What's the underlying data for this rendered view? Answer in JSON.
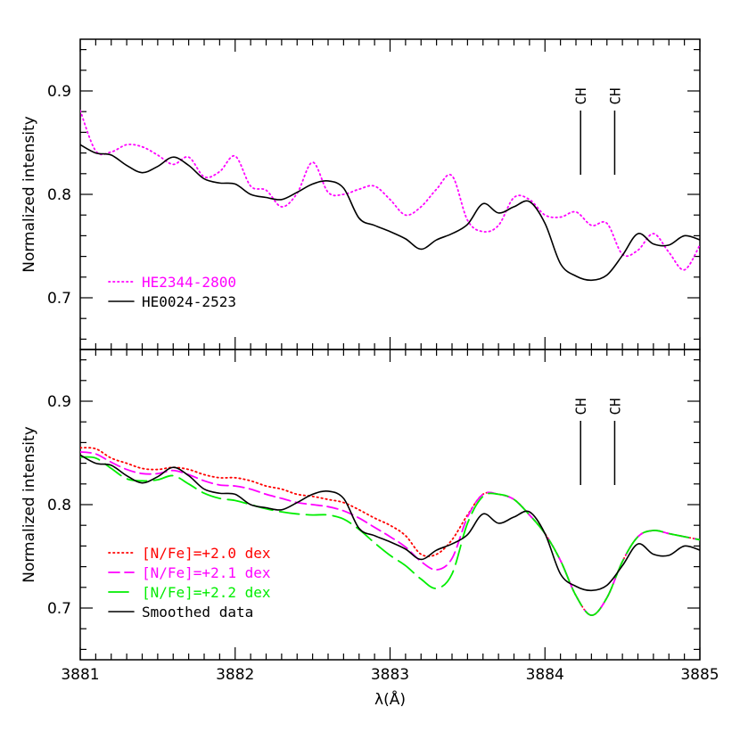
{
  "chart_data": [
    {
      "type": "line",
      "ylabel": "Normalized intensity",
      "xlim": [
        3881,
        3885
      ],
      "ylim": [
        0.65,
        0.95
      ],
      "yticks": [
        0.7,
        0.8,
        0.9
      ],
      "annotations": [
        {
          "text": "CH",
          "x": 3884.23
        },
        {
          "text": "CH",
          "x": 3884.45
        }
      ],
      "legend_position": "bottom-left",
      "series": [
        {
          "name": "HE2344-2800",
          "color": "#ff00ff",
          "style": "dotted",
          "x": [
            3881.0,
            3881.1,
            3881.2,
            3881.3,
            3881.4,
            3881.5,
            3881.6,
            3881.7,
            3881.8,
            3881.9,
            3882.0,
            3882.1,
            3882.2,
            3882.3,
            3882.4,
            3882.5,
            3882.6,
            3882.7,
            3882.8,
            3882.9,
            3883.0,
            3883.1,
            3883.2,
            3883.3,
            3883.4,
            3883.5,
            3883.6,
            3883.7,
            3883.8,
            3883.9,
            3884.0,
            3884.1,
            3884.2,
            3884.3,
            3884.4,
            3884.5,
            3884.6,
            3884.7,
            3884.8,
            3884.9,
            3885.0
          ],
          "y": [
            0.881,
            0.842,
            0.841,
            0.848,
            0.846,
            0.838,
            0.829,
            0.836,
            0.817,
            0.822,
            0.837,
            0.808,
            0.804,
            0.788,
            0.801,
            0.831,
            0.802,
            0.8,
            0.805,
            0.808,
            0.795,
            0.78,
            0.788,
            0.805,
            0.818,
            0.775,
            0.764,
            0.77,
            0.797,
            0.795,
            0.78,
            0.778,
            0.783,
            0.77,
            0.772,
            0.742,
            0.746,
            0.762,
            0.744,
            0.727,
            0.751
          ]
        },
        {
          "name": "HE0024-2523",
          "color": "#000000",
          "style": "solid",
          "x": [
            3881.0,
            3881.1,
            3881.2,
            3881.3,
            3881.4,
            3881.5,
            3881.6,
            3881.7,
            3881.8,
            3881.9,
            3882.0,
            3882.1,
            3882.2,
            3882.3,
            3882.4,
            3882.5,
            3882.6,
            3882.7,
            3882.8,
            3882.9,
            3883.0,
            3883.1,
            3883.2,
            3883.3,
            3883.4,
            3883.5,
            3883.6,
            3883.7,
            3883.8,
            3883.9,
            3884.0,
            3884.1,
            3884.2,
            3884.3,
            3884.4,
            3884.5,
            3884.6,
            3884.7,
            3884.8,
            3884.9,
            3885.0
          ],
          "y": [
            0.848,
            0.84,
            0.838,
            0.828,
            0.821,
            0.827,
            0.836,
            0.828,
            0.815,
            0.811,
            0.81,
            0.8,
            0.797,
            0.795,
            0.802,
            0.81,
            0.813,
            0.806,
            0.777,
            0.77,
            0.764,
            0.757,
            0.747,
            0.756,
            0.762,
            0.771,
            0.791,
            0.782,
            0.788,
            0.793,
            0.772,
            0.733,
            0.721,
            0.717,
            0.722,
            0.741,
            0.762,
            0.752,
            0.751,
            0.76,
            0.756
          ]
        }
      ]
    },
    {
      "type": "line",
      "xlabel": "λ(Å)",
      "ylabel": "Normalized intensity",
      "xlim": [
        3881,
        3885
      ],
      "ylim": [
        0.65,
        0.95
      ],
      "xticks": [
        3881,
        3882,
        3883,
        3884,
        3885
      ],
      "yticks": [
        0.7,
        0.8,
        0.9
      ],
      "annotations": [
        {
          "text": "CH",
          "x": 3884.23
        },
        {
          "text": "CH",
          "x": 3884.45
        }
      ],
      "legend_position": "bottom-left",
      "series": [
        {
          "name": "[N/Fe]=+2.0 dex",
          "color": "#ff0000",
          "style": "dotted",
          "x": [
            3881.0,
            3881.1,
            3881.2,
            3881.3,
            3881.4,
            3881.5,
            3881.6,
            3881.7,
            3881.8,
            3881.9,
            3882.0,
            3882.1,
            3882.2,
            3882.3,
            3882.4,
            3882.5,
            3882.6,
            3882.7,
            3882.8,
            3882.9,
            3883.0,
            3883.1,
            3883.2,
            3883.3,
            3883.4,
            3883.5,
            3883.6,
            3883.7,
            3883.8,
            3883.9,
            3884.0,
            3884.1,
            3884.2,
            3884.3,
            3884.4,
            3884.5,
            3884.6,
            3884.7,
            3884.8,
            3884.9,
            3885.0
          ],
          "y": [
            0.855,
            0.854,
            0.845,
            0.84,
            0.835,
            0.834,
            0.836,
            0.834,
            0.829,
            0.826,
            0.826,
            0.823,
            0.818,
            0.815,
            0.81,
            0.808,
            0.805,
            0.802,
            0.795,
            0.787,
            0.78,
            0.77,
            0.752,
            0.752,
            0.766,
            0.79,
            0.81,
            0.81,
            0.805,
            0.79,
            0.772,
            0.746,
            0.712,
            0.693,
            0.71,
            0.745,
            0.769,
            0.775,
            0.772,
            0.769,
            0.766
          ]
        },
        {
          "name": "[N/Fe]=+2.1 dex",
          "color": "#ff00ff",
          "style": "dashed",
          "x": [
            3881.0,
            3881.1,
            3881.2,
            3881.3,
            3881.4,
            3881.5,
            3881.6,
            3881.7,
            3881.8,
            3881.9,
            3882.0,
            3882.1,
            3882.2,
            3882.3,
            3882.4,
            3882.5,
            3882.6,
            3882.7,
            3882.8,
            3882.9,
            3883.0,
            3883.1,
            3883.2,
            3883.3,
            3883.4,
            3883.5,
            3883.6,
            3883.7,
            3883.8,
            3883.9,
            3884.0,
            3884.1,
            3884.2,
            3884.3,
            3884.4,
            3884.5,
            3884.6,
            3884.7,
            3884.8,
            3884.9,
            3885.0
          ],
          "y": [
            0.851,
            0.849,
            0.841,
            0.834,
            0.83,
            0.83,
            0.833,
            0.829,
            0.823,
            0.819,
            0.818,
            0.815,
            0.81,
            0.806,
            0.802,
            0.8,
            0.798,
            0.794,
            0.787,
            0.778,
            0.769,
            0.759,
            0.745,
            0.737,
            0.748,
            0.788,
            0.81,
            0.81,
            0.805,
            0.79,
            0.772,
            0.746,
            0.712,
            0.693,
            0.71,
            0.745,
            0.769,
            0.775,
            0.772,
            0.769,
            0.766
          ]
        },
        {
          "name": "[N/Fe]=+2.2 dex",
          "color": "#00ee00",
          "style": "longdash",
          "x": [
            3881.0,
            3881.1,
            3881.2,
            3881.3,
            3881.4,
            3881.5,
            3881.6,
            3881.7,
            3881.8,
            3881.9,
            3882.0,
            3882.1,
            3882.2,
            3882.3,
            3882.4,
            3882.5,
            3882.6,
            3882.7,
            3882.8,
            3882.9,
            3883.0,
            3883.1,
            3883.2,
            3883.3,
            3883.4,
            3883.5,
            3883.6,
            3883.7,
            3883.8,
            3883.9,
            3884.0,
            3884.1,
            3884.2,
            3884.3,
            3884.4,
            3884.5,
            3884.6,
            3884.7,
            3884.8,
            3884.9,
            3885.0
          ],
          "y": [
            0.846,
            0.845,
            0.835,
            0.825,
            0.823,
            0.824,
            0.828,
            0.82,
            0.811,
            0.806,
            0.804,
            0.8,
            0.796,
            0.793,
            0.791,
            0.79,
            0.79,
            0.786,
            0.776,
            0.763,
            0.751,
            0.741,
            0.728,
            0.719,
            0.733,
            0.782,
            0.808,
            0.81,
            0.805,
            0.79,
            0.772,
            0.746,
            0.712,
            0.693,
            0.71,
            0.745,
            0.769,
            0.775,
            0.772,
            0.769,
            0.766
          ]
        },
        {
          "name": "Smoothed data",
          "color": "#000000",
          "style": "solid",
          "x": [
            3881.0,
            3881.1,
            3881.2,
            3881.3,
            3881.4,
            3881.5,
            3881.6,
            3881.7,
            3881.8,
            3881.9,
            3882.0,
            3882.1,
            3882.2,
            3882.3,
            3882.4,
            3882.5,
            3882.6,
            3882.7,
            3882.8,
            3882.9,
            3883.0,
            3883.1,
            3883.2,
            3883.3,
            3883.4,
            3883.5,
            3883.6,
            3883.7,
            3883.8,
            3883.9,
            3884.0,
            3884.1,
            3884.2,
            3884.3,
            3884.4,
            3884.5,
            3884.6,
            3884.7,
            3884.8,
            3884.9,
            3885.0
          ],
          "y": [
            0.848,
            0.84,
            0.838,
            0.828,
            0.821,
            0.827,
            0.836,
            0.828,
            0.815,
            0.811,
            0.81,
            0.8,
            0.797,
            0.795,
            0.802,
            0.81,
            0.813,
            0.806,
            0.777,
            0.77,
            0.764,
            0.757,
            0.747,
            0.756,
            0.762,
            0.771,
            0.791,
            0.782,
            0.788,
            0.793,
            0.772,
            0.733,
            0.721,
            0.717,
            0.722,
            0.741,
            0.762,
            0.752,
            0.751,
            0.76,
            0.756
          ]
        }
      ]
    }
  ]
}
